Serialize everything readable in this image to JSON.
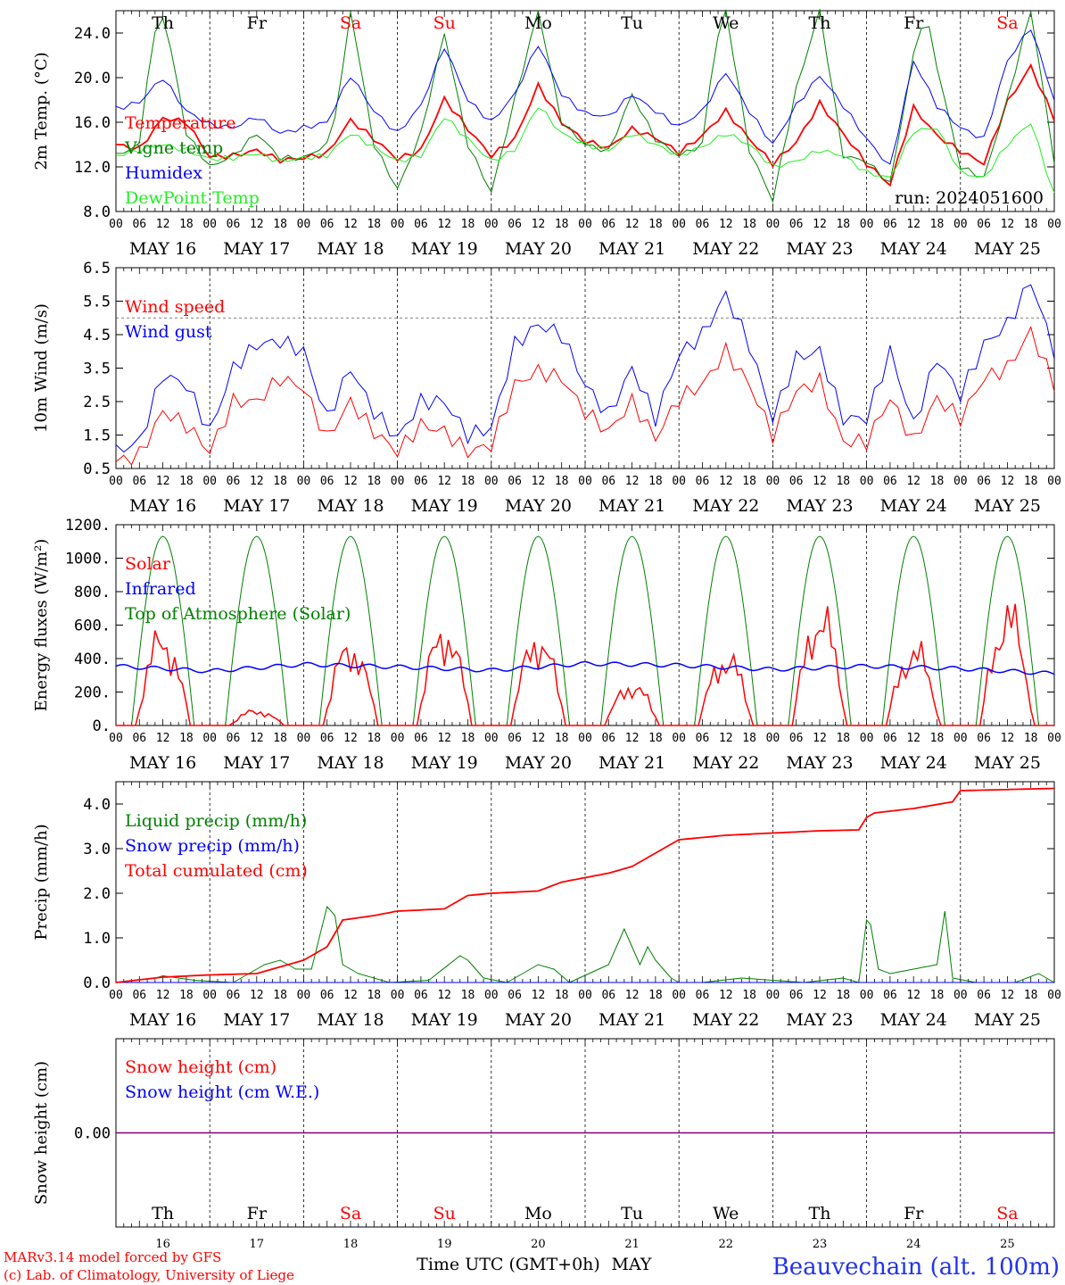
{
  "days": [
    "16",
    "17",
    "18",
    "19",
    "20",
    "21",
    "22",
    "23",
    "24",
    "25"
  ],
  "day_names": [
    "Th",
    "Fr",
    "Sa",
    "Su",
    "Mo",
    "Tu",
    "We",
    "Th",
    "Fr",
    "Sa"
  ],
  "weekend": [
    false,
    false,
    true,
    true,
    false,
    false,
    false,
    false,
    false,
    true
  ],
  "month": "MAY",
  "date_labels": [
    "MAY 16",
    "MAY 17",
    "MAY 18",
    "MAY 19",
    "MAY 20",
    "MAY 21",
    "MAY 22",
    "MAY 23",
    "MAY 24",
    "MAY 25"
  ],
  "hour_ticks": [
    "00",
    "06",
    "12",
    "18"
  ],
  "hour_end": "00",
  "run": "run: 2024051600",
  "xlabel": "Time UTC (GMT+0h)",
  "credit_line1": "MARv3.14 model forced by GFS",
  "credit_line2": "(c) Lab. of Climatology, University of Liege",
  "station": "Beauvechain (alt. 100m)",
  "colors": {
    "red": "#ff0000",
    "green": "#008000",
    "blue": "#0000ff",
    "lightgreen": "#22ee22",
    "purple": "#7f007f"
  },
  "chart_data": [
    {
      "type": "line",
      "ylabel": "2m Temp. (°C)",
      "ylim": [
        8,
        26
      ],
      "yticks": [
        "8.0",
        "12.0",
        "16.0",
        "20.0",
        "24.0"
      ],
      "x_unit": "hours since MAY 16 00 UTC",
      "series": [
        {
          "name": "Temperature",
          "color": "#ff0000",
          "x": [
            0,
            6,
            12,
            18,
            24,
            30,
            36,
            42,
            48,
            54,
            60,
            66,
            72,
            78,
            84,
            90,
            96,
            102,
            108,
            114,
            120,
            126,
            132,
            138,
            144,
            150,
            156,
            162,
            168,
            174,
            180,
            186,
            192,
            198,
            204,
            210,
            216,
            222,
            228,
            234,
            240
          ],
          "values": [
            14.0,
            13.6,
            16.4,
            16.0,
            12.9,
            13.0,
            13.5,
            12.6,
            12.8,
            13.2,
            16.2,
            14.5,
            12.7,
            13.5,
            18.1,
            15.4,
            13.0,
            14.5,
            19.3,
            16.0,
            14.3,
            13.7,
            15.4,
            14.6,
            13.3,
            14.8,
            17.0,
            14.5,
            12.3,
            14.2,
            17.7,
            15.0,
            12.3,
            10.4,
            17.3,
            14.8,
            13.4,
            12.3,
            17.8,
            21.0,
            16.3
          ]
        },
        {
          "name": "Vigne temp",
          "color": "#008000",
          "x": [
            0,
            6,
            9,
            12,
            15,
            18,
            24,
            30,
            36,
            42,
            48,
            54,
            57,
            60,
            66,
            72,
            78,
            84,
            90,
            96,
            102,
            108,
            114,
            120,
            126,
            132,
            138,
            144,
            150,
            153,
            156,
            162,
            168,
            174,
            180,
            186,
            192,
            198,
            204,
            207,
            210,
            216,
            222,
            228,
            234,
            240
          ],
          "values": [
            13.0,
            14.0,
            23.0,
            25.5,
            21.0,
            15.0,
            12.0,
            13.0,
            15.0,
            12.8,
            12.8,
            14.0,
            18.0,
            26.0,
            14.0,
            10.0,
            15.0,
            24.0,
            14.0,
            9.7,
            18.0,
            26.0,
            16.0,
            14.0,
            13.4,
            18.5,
            14.5,
            13.0,
            14.0,
            22.5,
            26.0,
            13.5,
            9.0,
            19.0,
            26.0,
            13.0,
            12.5,
            10.5,
            22.0,
            26.0,
            21.0,
            12.0,
            11.0,
            18.0,
            26.0,
            12.5
          ]
        },
        {
          "name": "Humidex",
          "color": "#0000ff",
          "x": [
            0,
            6,
            12,
            18,
            24,
            30,
            36,
            42,
            48,
            54,
            60,
            66,
            72,
            78,
            84,
            90,
            96,
            102,
            108,
            114,
            120,
            126,
            132,
            138,
            144,
            150,
            156,
            162,
            168,
            174,
            180,
            186,
            192,
            198,
            204,
            210,
            216,
            222,
            228,
            234,
            240
          ],
          "values": [
            17.2,
            17.8,
            20.0,
            17.0,
            15.8,
            15.5,
            16.5,
            15.0,
            15.5,
            16.0,
            20.2,
            17.0,
            15.0,
            17.5,
            22.8,
            18.0,
            16.0,
            18.5,
            23.0,
            18.5,
            16.8,
            16.5,
            18.5,
            17.0,
            15.6,
            17.0,
            20.5,
            17.0,
            14.0,
            17.5,
            20.2,
            17.5,
            14.5,
            12.0,
            21.5,
            17.5,
            15.5,
            14.5,
            21.5,
            24.5,
            18.0
          ]
        },
        {
          "name": "DewPoint Temp",
          "color": "#22ee22",
          "x": [
            0,
            6,
            12,
            18,
            24,
            30,
            36,
            42,
            48,
            54,
            60,
            66,
            72,
            78,
            84,
            90,
            96,
            102,
            108,
            114,
            120,
            126,
            132,
            138,
            144,
            150,
            156,
            162,
            168,
            174,
            180,
            186,
            192,
            198,
            204,
            210,
            216,
            222,
            228,
            234,
            240
          ],
          "values": [
            13.0,
            13.5,
            14.0,
            13.5,
            12.7,
            12.8,
            13.2,
            12.5,
            12.8,
            13.0,
            15.0,
            13.8,
            12.5,
            13.0,
            16.5,
            14.5,
            12.5,
            13.5,
            17.5,
            15.0,
            14.0,
            13.5,
            15.0,
            14.0,
            13.0,
            13.8,
            15.0,
            14.0,
            12.0,
            12.5,
            13.5,
            13.0,
            11.5,
            11.0,
            15.2,
            15.5,
            11.5,
            11.0,
            14.0,
            16.0,
            9.5
          ]
        }
      ]
    },
    {
      "type": "line",
      "ylabel": "10m Wind (m/s)",
      "ylim": [
        0.5,
        6.5
      ],
      "yticks": [
        "0.5",
        "1.5",
        "2.5",
        "3.5",
        "4.5",
        "5.5",
        "6.5"
      ],
      "reference_line": 5.0,
      "series": [
        {
          "name": "Wind speed",
          "color": "#ff0000",
          "x": [
            0,
            6,
            12,
            18,
            24,
            30,
            36,
            42,
            48,
            54,
            60,
            66,
            72,
            78,
            84,
            90,
            96,
            102,
            108,
            114,
            120,
            126,
            132,
            138,
            144,
            150,
            156,
            162,
            168,
            174,
            180,
            186,
            192,
            198,
            204,
            210,
            216,
            222,
            228,
            234,
            240
          ],
          "values": [
            0.7,
            0.9,
            2.2,
            1.8,
            1.0,
            2.5,
            2.5,
            3.2,
            2.9,
            1.4,
            2.5,
            1.6,
            1.0,
            1.8,
            1.6,
            1.0,
            1.2,
            3.0,
            3.4,
            3.2,
            2.2,
            1.6,
            2.5,
            1.4,
            2.6,
            3.0,
            4.0,
            3.0,
            1.5,
            2.8,
            3.1,
            1.3,
            1.3,
            2.6,
            1.3,
            2.6,
            2.0,
            3.2,
            3.5,
            4.6,
            3.0
          ]
        },
        {
          "name": "Wind gust",
          "color": "#0000ff",
          "x": [
            0,
            6,
            12,
            18,
            24,
            30,
            36,
            42,
            48,
            54,
            60,
            66,
            72,
            78,
            84,
            90,
            96,
            102,
            108,
            114,
            120,
            126,
            132,
            138,
            144,
            150,
            156,
            162,
            168,
            174,
            180,
            186,
            192,
            198,
            204,
            210,
            216,
            222,
            228,
            234,
            240
          ],
          "values": [
            1.0,
            1.3,
            3.3,
            3.0,
            1.6,
            3.5,
            4.2,
            4.3,
            4.0,
            2.0,
            3.5,
            2.2,
            1.4,
            2.5,
            2.5,
            1.5,
            1.7,
            4.2,
            4.8,
            4.5,
            3.0,
            2.1,
            3.5,
            2.0,
            3.9,
            4.5,
            5.7,
            4.2,
            2.0,
            3.8,
            4.0,
            2.0,
            2.0,
            4.0,
            1.8,
            3.8,
            2.7,
            4.2,
            4.8,
            6.1,
            4.0
          ]
        }
      ]
    },
    {
      "type": "line",
      "ylabel": "Energy fluxes (W/m²)",
      "ylim": [
        0,
        1200
      ],
      "yticks": [
        "0.",
        "200.",
        "400.",
        "600.",
        "800.",
        "1000.",
        "1200."
      ],
      "series": [
        {
          "name": "Solar",
          "color": "#ff0000",
          "peaks": [
            650,
            110,
            590,
            700,
            650,
            300,
            510,
            810,
            560,
            820
          ]
        },
        {
          "name": "Infrared",
          "color": "#0000ff",
          "x": [
            0,
            24,
            48,
            72,
            96,
            120,
            144,
            168,
            192,
            216,
            240
          ],
          "values": [
            355,
            325,
            365,
            350,
            330,
            370,
            360,
            335,
            355,
            340,
            310
          ]
        },
        {
          "name": "Top of Atmosphere (Solar)",
          "color": "#008000",
          "peak": 1130,
          "sunrise_hour": 4,
          "sunset_hour": 20
        }
      ]
    },
    {
      "type": "line",
      "ylabel": "Precip (mm/h)",
      "ylim": [
        0,
        4.5
      ],
      "yticks": [
        "0.0",
        "1.0",
        "2.0",
        "3.0",
        "4.0"
      ],
      "series": [
        {
          "name": "Liquid precip (mm/h)",
          "color": "#008000",
          "x": [
            0,
            10,
            12,
            20,
            30,
            36,
            38,
            42,
            46,
            50,
            54,
            56,
            58,
            62,
            66,
            70,
            80,
            88,
            90,
            94,
            100,
            108,
            112,
            116,
            126,
            130,
            134,
            136,
            138,
            142,
            144,
            150,
            160,
            176,
            186,
            190,
            192,
            193,
            195,
            198,
            210,
            212,
            214,
            220,
            230,
            236,
            240
          ],
          "values": [
            0,
            0.1,
            0.15,
            0.05,
            0,
            0.3,
            0.4,
            0.5,
            0.3,
            0.3,
            1.7,
            1.5,
            0.4,
            0.2,
            0.1,
            0,
            0.05,
            0.6,
            0.5,
            0.1,
            0,
            0.4,
            0.3,
            0,
            0.4,
            1.2,
            0.4,
            0.8,
            0.5,
            0.1,
            0,
            0,
            0.1,
            0,
            0.1,
            0,
            1.4,
            1.3,
            0.3,
            0.2,
            0.4,
            1.6,
            0.1,
            0,
            0,
            0.2,
            0
          ]
        },
        {
          "name": "Snow precip (mm/h)",
          "color": "#0000ff",
          "x": [
            0,
            240
          ],
          "values": [
            0,
            0
          ]
        },
        {
          "name": "Total cumulated (cm)",
          "color": "#ff0000",
          "x": [
            0,
            12,
            24,
            36,
            42,
            48,
            54,
            58,
            66,
            72,
            84,
            90,
            96,
            108,
            114,
            120,
            126,
            132,
            138,
            144,
            156,
            168,
            180,
            190,
            192,
            194,
            204,
            214,
            216,
            240
          ],
          "values": [
            0,
            0.12,
            0.17,
            0.2,
            0.35,
            0.5,
            0.8,
            1.4,
            1.5,
            1.6,
            1.65,
            1.95,
            2.0,
            2.05,
            2.25,
            2.35,
            2.45,
            2.6,
            2.9,
            3.2,
            3.3,
            3.35,
            3.4,
            3.42,
            3.7,
            3.8,
            3.9,
            4.05,
            4.3,
            4.35
          ]
        }
      ]
    },
    {
      "type": "line",
      "ylabel": "Snow height (cm)",
      "ylim": [
        -1,
        1
      ],
      "yticks": [
        "0.00"
      ],
      "series": [
        {
          "name": "Snow height (cm)",
          "color": "#ff0000",
          "x": [
            0,
            240
          ],
          "values": [
            0,
            0
          ]
        },
        {
          "name": "Snow height (cm W.E.)",
          "color": "#0000ff",
          "x": [
            0,
            240
          ],
          "values": [
            0,
            0
          ]
        }
      ]
    }
  ]
}
